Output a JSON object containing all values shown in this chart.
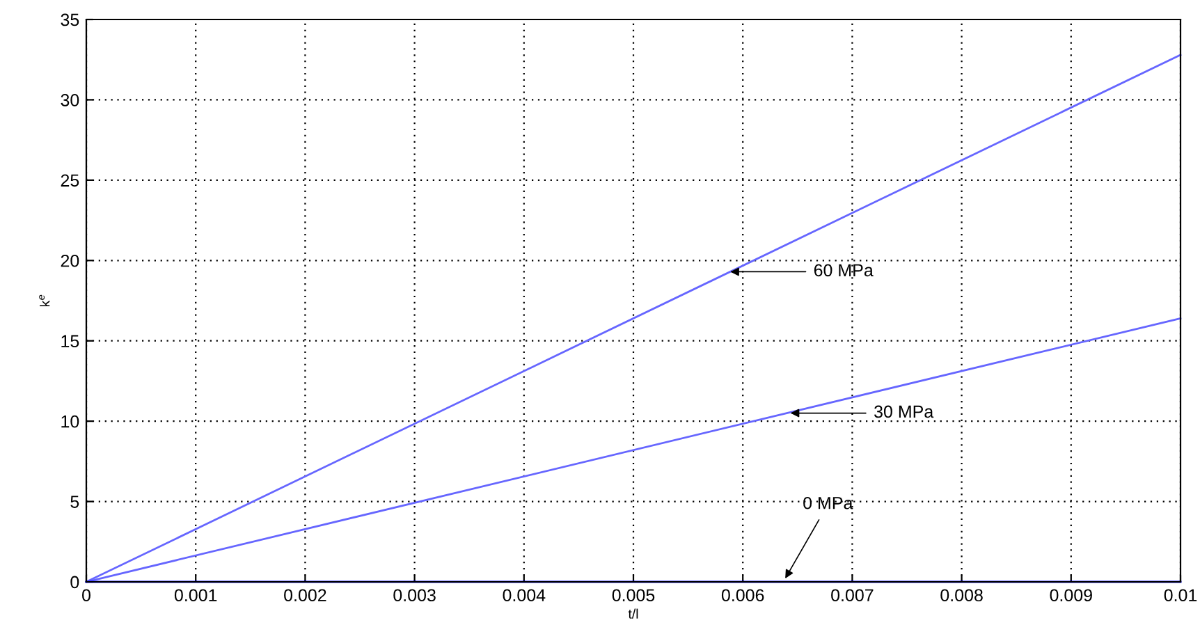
{
  "chart_data": {
    "type": "line",
    "xlabel": "t/l",
    "ylabel": "k$^{e}$",
    "x": [
      0,
      0.01
    ],
    "series": [
      {
        "color": "#6666ff",
        "values": [
          0,
          32.8
        ]
      },
      {
        "color": "#6666ff",
        "values": [
          0,
          16.4
        ]
      },
      {
        "color": "#0000ff",
        "values": [
          0,
          0
        ]
      }
    ],
    "annotations": [
      {
        "text": "60 MPa",
        "x": 0.00585,
        "y": 19.3
      },
      {
        "text": "30 MPa",
        "x": 0.0064,
        "y": 10.5
      },
      {
        "text": "0 MPa",
        "x": 0.00637,
        "y": 0
      }
    ],
    "xlim": [
      0,
      0.01
    ],
    "ylim": [
      0,
      35
    ],
    "xticks": [
      0,
      0.001,
      0.002,
      0.003,
      0.004,
      0.005,
      0.006,
      0.007,
      0.008,
      0.009,
      0.01
    ],
    "yticks": [
      0,
      5,
      10,
      15,
      20,
      25,
      30,
      35
    ],
    "grid": true,
    "marker": "none",
    "line_style": "solid"
  }
}
